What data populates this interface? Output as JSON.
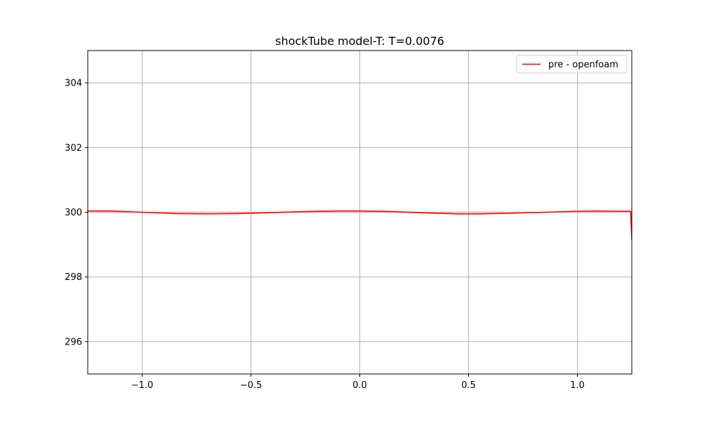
{
  "chart_data": {
    "type": "line",
    "title": "shockTube model-T: T=0.0076",
    "xlabel": "",
    "ylabel": "",
    "xlim": [
      -1.25,
      1.25
    ],
    "ylim": [
      295,
      305
    ],
    "xticks": [
      -1.0,
      -0.5,
      0.0,
      0.5,
      1.0
    ],
    "xtick_labels": [
      "−1.0",
      "−0.5",
      "0.0",
      "0.5",
      "1.0"
    ],
    "yticks": [
      296,
      298,
      300,
      302,
      304
    ],
    "ytick_labels": [
      "296",
      "298",
      "300",
      "302",
      "304"
    ],
    "grid": true,
    "legend_position": "top-right",
    "series": [
      {
        "name": "",
        "color": "#f4a0a0",
        "x": [
          -1.25,
          1.25
        ],
        "y": [
          300.0,
          300.0
        ]
      },
      {
        "name": "pre - openfoam",
        "color": "#ff0000",
        "x": [
          -1.25,
          -1.15,
          -1.0,
          -0.85,
          -0.7,
          -0.55,
          -0.4,
          -0.25,
          -0.1,
          0.0,
          0.15,
          0.3,
          0.45,
          0.55,
          0.7,
          0.85,
          1.0,
          1.1,
          1.2,
          1.245,
          1.247,
          1.25
        ],
        "y": [
          300.04,
          300.04,
          300.0,
          299.96,
          299.95,
          299.96,
          299.99,
          300.02,
          300.04,
          300.04,
          300.02,
          299.98,
          299.95,
          299.95,
          299.97,
          300.0,
          300.03,
          300.04,
          300.03,
          300.03,
          299.6,
          299.15
        ]
      }
    ]
  }
}
